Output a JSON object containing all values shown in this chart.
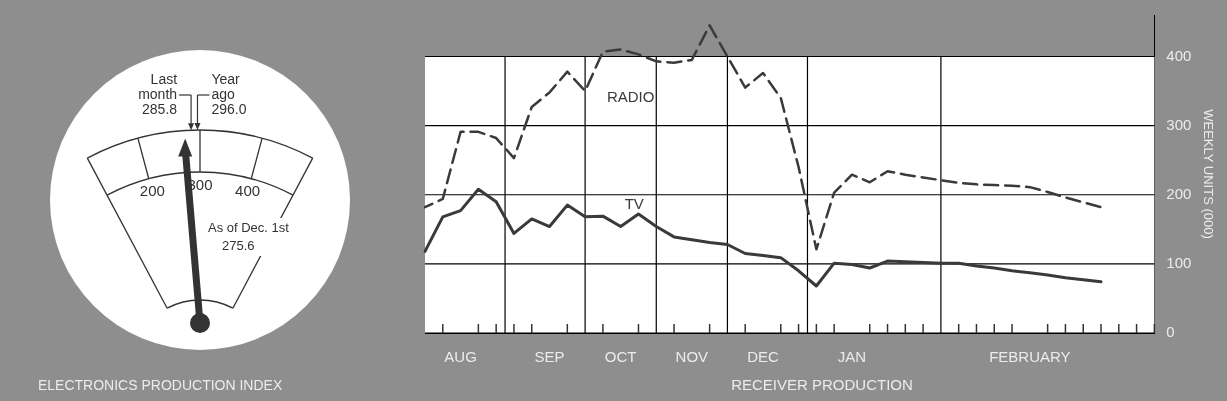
{
  "chart_data": [
    {
      "type": "other",
      "title": "ELECTRONICS PRODUCTION INDEX",
      "categories": [
        "Last month",
        "Year ago",
        "As of Dec. 1st"
      ],
      "values": [
        285.8,
        296.0,
        275.6
      ],
      "value_labels": [
        "285.8",
        "296.0",
        "275.6"
      ],
      "annotations": [
        "200",
        "300",
        "400"
      ]
    },
    {
      "type": "line",
      "title": "RECEIVER PRODUCTION",
      "ylabel": "WEEKLY UNITS (000)",
      "ylim": [
        0,
        460
      ],
      "yticks": [
        0,
        100,
        200,
        300,
        400
      ],
      "categories": [
        null,
        null,
        "AUG",
        null,
        null,
        null,
        null,
        "SEP",
        null,
        null,
        null,
        "OCT",
        null,
        null,
        null,
        "NOV",
        null,
        null,
        null,
        "DEC",
        null,
        null,
        null,
        null,
        "JAN",
        null,
        null,
        null,
        null,
        null,
        null,
        null,
        null,
        null,
        "FEBRUARY",
        null,
        null,
        null,
        null,
        null,
        null,
        null
      ],
      "grid": true,
      "legend": false,
      "marker": "none",
      "series": [
        {
          "name": "RADIO",
          "color": "#3a3a3a",
          "line_style": "dashed",
          "values": [
            182,
            194,
            291,
            291,
            282,
            253,
            327,
            348,
            378,
            350,
            407,
            410,
            403,
            393,
            391,
            395,
            445,
            400,
            355,
            376,
            340,
            240,
            121,
            203,
            229,
            218,
            234,
            229,
            225,
            221,
            217,
            215,
            214,
            213,
            211,
            204,
            196,
            189,
            182,
            null,
            null,
            null
          ]
        },
        {
          "name": "TV",
          "color": "#3a3a3a",
          "line_style": "solid",
          "values": [
            118,
            168,
            177,
            208,
            190,
            144,
            165,
            154,
            185,
            168,
            169,
            154,
            172,
            154,
            139,
            135,
            131,
            128,
            115,
            112,
            109,
            90,
            68,
            101,
            99,
            94,
            104,
            103,
            102,
            101,
            101,
            97,
            94,
            90,
            87,
            84,
            80,
            77,
            74,
            null,
            null,
            null
          ]
        }
      ]
    }
  ]
}
